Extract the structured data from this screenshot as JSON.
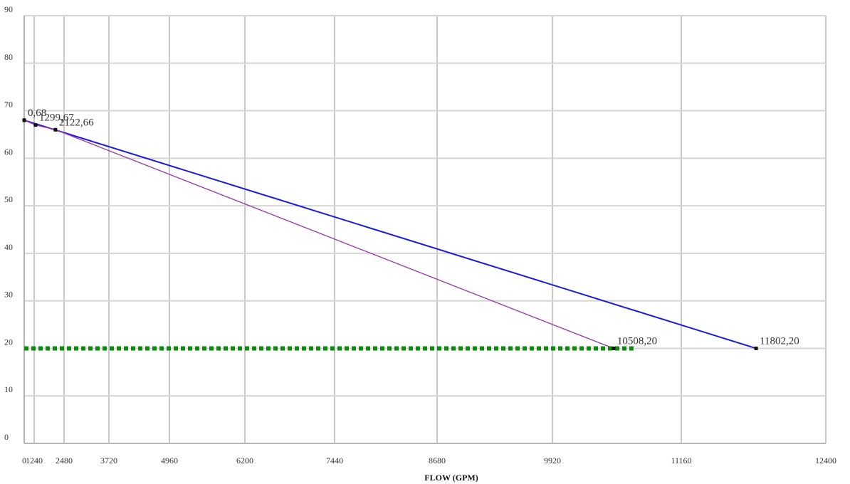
{
  "chart_data": {
    "type": "line",
    "title": "",
    "xlabel": "FLOW (GPM)",
    "ylabel": "",
    "xlim": [
      0,
      12400
    ],
    "ylim": [
      0,
      90
    ],
    "x_ticks": [
      0,
      1240,
      2480,
      3720,
      4960,
      6200,
      7440,
      8680,
      9920,
      11160,
      12400
    ],
    "x_tick_labels": [
      "0",
      "1240",
      "2480",
      "3720",
      "4960",
      "6200",
      "7440",
      "8680",
      "9920",
      "11160",
      "12400"
    ],
    "y_ticks": [
      0,
      10,
      20,
      30,
      40,
      50,
      60,
      70,
      80,
      90
    ],
    "y_tick_labels": [
      "0",
      "10",
      "20",
      "30",
      "40",
      "50",
      "60",
      "70",
      "80",
      "90"
    ],
    "grid": true,
    "series": [
      {
        "color": "#1a1adb",
        "style": "solid",
        "points": [
          {
            "x": 0,
            "y": 68,
            "label": "0,68"
          },
          {
            "x": 11802,
            "y": 20,
            "label": "11802,20"
          }
        ]
      },
      {
        "color": "#9b3fa8",
        "style": "solid",
        "points": [
          {
            "x": 0,
            "y": 68,
            "label": ""
          },
          {
            "x": 1299,
            "y": 67,
            "label": "1299,67"
          },
          {
            "x": 2122,
            "y": 66,
            "label": "2122,66"
          },
          {
            "x": 10508,
            "y": 20,
            "label": "10508,20"
          }
        ]
      },
      {
        "color": "#0d8a0d",
        "style": "dotted",
        "points": [
          {
            "x": 0,
            "y": 20,
            "label": ""
          },
          {
            "x": 10700,
            "y": 20,
            "label": ""
          }
        ]
      }
    ]
  }
}
